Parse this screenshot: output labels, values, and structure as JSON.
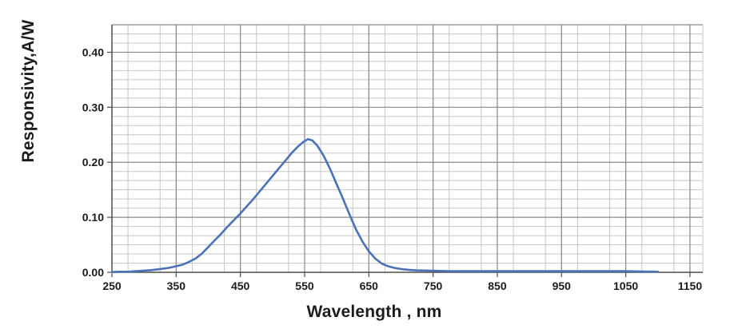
{
  "figure": {
    "background": "#ffffff",
    "plot_background": "#ffffff",
    "curve_color": "#4b72b8",
    "grid_minor_color": "#c7c7c7",
    "grid_major_color": "#8a8a8a",
    "axis_line_color": "#4d4d4d",
    "text_color": "#1c1c1c"
  },
  "chart_data": {
    "type": "line",
    "title": "",
    "xlabel": "Wavelength , nm",
    "ylabel": "Responsivity,A/W",
    "xlim": [
      250,
      1170
    ],
    "ylim": [
      0,
      0.45
    ],
    "grid": "major-and-minor",
    "legend": "none",
    "x_major_ticks": [
      250,
      350,
      450,
      550,
      650,
      750,
      850,
      950,
      1050,
      1150
    ],
    "x_minor_step": 25,
    "y_major_ticks": [
      {
        "label": "0.00",
        "value": 0.0
      },
      {
        "label": "0.10",
        "value": 0.1
      },
      {
        "label": "0.20",
        "value": 0.2
      },
      {
        "label": "0.30",
        "value": 0.3
      },
      {
        "label": "0.40",
        "value": 0.4
      }
    ],
    "y_minor_step": 0.0166667,
    "series": [
      {
        "name": "responsivity",
        "points": [
          [
            250,
            0.0005
          ],
          [
            262,
            0.001
          ],
          [
            275,
            0.001
          ],
          [
            288,
            0.002
          ],
          [
            300,
            0.003
          ],
          [
            312,
            0.004
          ],
          [
            325,
            0.006
          ],
          [
            338,
            0.008
          ],
          [
            350,
            0.011
          ],
          [
            360,
            0.014
          ],
          [
            370,
            0.019
          ],
          [
            380,
            0.025
          ],
          [
            390,
            0.034
          ],
          [
            400,
            0.046
          ],
          [
            410,
            0.058
          ],
          [
            420,
            0.07
          ],
          [
            430,
            0.083
          ],
          [
            440,
            0.095
          ],
          [
            450,
            0.107
          ],
          [
            460,
            0.12
          ],
          [
            470,
            0.133
          ],
          [
            480,
            0.147
          ],
          [
            490,
            0.161
          ],
          [
            500,
            0.175
          ],
          [
            510,
            0.189
          ],
          [
            520,
            0.203
          ],
          [
            530,
            0.217
          ],
          [
            540,
            0.229
          ],
          [
            548,
            0.237
          ],
          [
            555,
            0.242
          ],
          [
            562,
            0.24
          ],
          [
            570,
            0.23
          ],
          [
            580,
            0.211
          ],
          [
            590,
            0.187
          ],
          [
            600,
            0.16
          ],
          [
            610,
            0.133
          ],
          [
            620,
            0.105
          ],
          [
            630,
            0.078
          ],
          [
            640,
            0.056
          ],
          [
            650,
            0.038
          ],
          [
            660,
            0.025
          ],
          [
            670,
            0.016
          ],
          [
            680,
            0.011
          ],
          [
            690,
            0.008
          ],
          [
            700,
            0.006
          ],
          [
            712,
            0.0045
          ],
          [
            725,
            0.0035
          ],
          [
            750,
            0.0028
          ],
          [
            775,
            0.0022
          ],
          [
            800,
            0.002
          ],
          [
            850,
            0.002
          ],
          [
            900,
            0.002
          ],
          [
            950,
            0.002
          ],
          [
            1000,
            0.002
          ],
          [
            1050,
            0.002
          ],
          [
            1080,
            0.0015
          ],
          [
            1100,
            0.001
          ]
        ]
      }
    ]
  }
}
